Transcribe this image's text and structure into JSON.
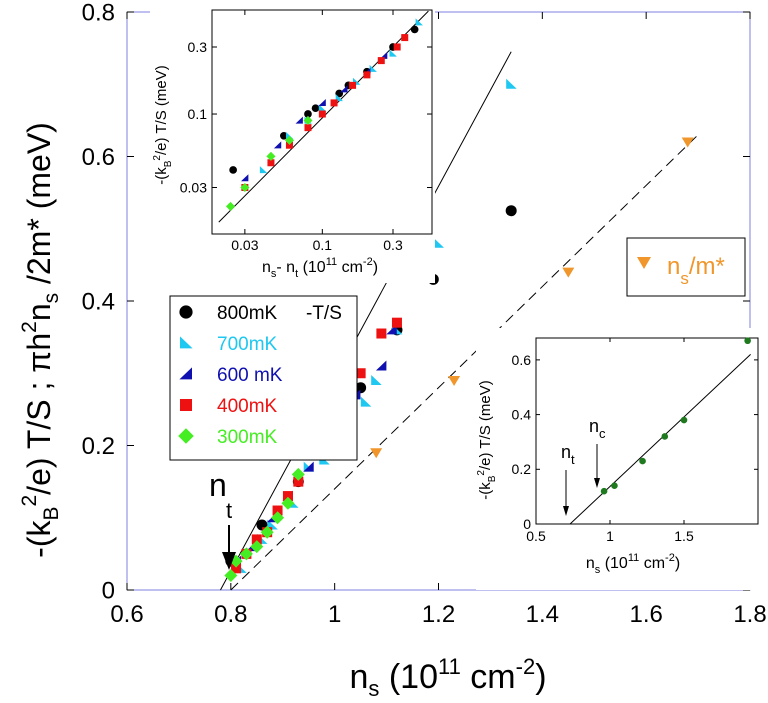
{
  "chart_data": [
    {
      "type": "scatter",
      "xlabel": {
        "base": "n",
        "sub": "s",
        "rest": " (10",
        "sup": "11",
        "unit": " cm",
        "unit_sup": "-2",
        "close": ")"
      },
      "ylabel": {
        "t1": "-(k",
        "t1_sub": "B",
        "t1_sup": "2",
        "t1_rest": "/e) T/S ;   πh",
        "t2_sup": "2",
        "t2": "n",
        "t2_sub": "s",
        "t2_rest": " /2m* (meV)"
      },
      "xlim": [
        0.6,
        1.8
      ],
      "ylim": [
        0,
        0.8
      ],
      "x_ticks": [
        "0.6",
        "0.8",
        "1",
        "1.2",
        "1.4",
        "1.6",
        "1.8"
      ],
      "x_tick_values": [
        0.6,
        0.8,
        1.0,
        1.2,
        1.4,
        1.6,
        1.8
      ],
      "y_ticks": [
        "0",
        "0.2",
        "0.4",
        "0.6",
        "0.8"
      ],
      "y_tick_values": [
        0,
        0.2,
        0.4,
        0.6,
        0.8
      ],
      "legend_placement": "middle-left",
      "legend_title_suffix": "-T/S",
      "series": [
        {
          "name": "800mK",
          "marker": "circle",
          "color": "#000000",
          "points": [
            [
              0.8,
              0.04
            ],
            [
              0.86,
              0.09
            ],
            [
              0.93,
              0.15
            ],
            [
              0.96,
              0.19
            ],
            [
              1.0,
              0.24
            ],
            [
              1.02,
              0.25
            ],
            [
              1.05,
              0.28
            ],
            [
              1.12,
              0.36
            ],
            [
              1.19,
              0.43
            ],
            [
              1.34,
              0.525
            ]
          ]
        },
        {
          "name": "700mK",
          "marker": "triangle-right",
          "color": "#1ec8f0",
          "points": [
            [
              0.82,
              0.03
            ],
            [
              0.86,
              0.07
            ],
            [
              0.88,
              0.09
            ],
            [
              0.92,
              0.12
            ],
            [
              0.95,
              0.17
            ],
            [
              0.98,
              0.18
            ],
            [
              1.0,
              0.21
            ],
            [
              1.03,
              0.23
            ],
            [
              1.06,
              0.26
            ],
            [
              1.08,
              0.29
            ],
            [
              1.12,
              0.36
            ],
            [
              1.2,
              0.48
            ],
            [
              1.34,
              0.7
            ]
          ]
        },
        {
          "name": "600 mK",
          "marker": "triangle-left",
          "color": "#1010b0",
          "points": [
            [
              0.81,
              0.04
            ],
            [
              0.84,
              0.06
            ],
            [
              0.88,
              0.1
            ],
            [
              0.91,
              0.13
            ],
            [
              0.95,
              0.17
            ],
            [
              0.99,
              0.21
            ],
            [
              1.01,
              0.24
            ],
            [
              1.04,
              0.27
            ],
            [
              1.09,
              0.31
            ],
            [
              1.11,
              0.36
            ]
          ]
        },
        {
          "name": "400mK",
          "marker": "square",
          "color": "#ee1111",
          "points": [
            [
              0.81,
              0.03
            ],
            [
              0.83,
              0.05
            ],
            [
              0.85,
              0.07
            ],
            [
              0.87,
              0.08
            ],
            [
              0.89,
              0.11
            ],
            [
              0.91,
              0.13
            ],
            [
              0.93,
              0.15
            ],
            [
              0.96,
              0.19
            ],
            [
              0.97,
              0.22
            ],
            [
              0.99,
              0.22
            ],
            [
              1.01,
              0.25
            ],
            [
              1.03,
              0.27
            ],
            [
              1.05,
              0.3
            ],
            [
              1.09,
              0.355
            ],
            [
              1.12,
              0.37
            ]
          ]
        },
        {
          "name": "300mK",
          "marker": "diamond",
          "color": "#44ee22",
          "points": [
            [
              0.8,
              0.02
            ],
            [
              0.81,
              0.04
            ],
            [
              0.83,
              0.05
            ],
            [
              0.85,
              0.06
            ],
            [
              0.87,
              0.08
            ],
            [
              0.89,
              0.1
            ],
            [
              0.91,
              0.12
            ],
            [
              0.93,
              0.16
            ],
            [
              0.96,
              0.22
            ]
          ]
        },
        {
          "name": "n_s/m*",
          "marker": "triangle-down",
          "color": "#f0962a",
          "points": [
            [
              1.08,
              0.19
            ],
            [
              1.23,
              0.29
            ],
            [
              1.45,
              0.44
            ],
            [
              1.68,
              0.62
            ]
          ]
        }
      ],
      "fit_lines": [
        {
          "style": "solid",
          "from": [
            0.78,
            0.0
          ],
          "to": [
            1.34,
            0.745
          ]
        },
        {
          "style": "dashed",
          "from": [
            0.8,
            0.0
          ],
          "to": [
            1.7,
            0.63
          ]
        }
      ],
      "annotations": {
        "nt_base": "n",
        "nt_sub": "t",
        "nt_point": [
          0.785,
          0.025
        ],
        "nsm_base": "n",
        "nsm_sub": "s",
        "nsm_rest": "/m*"
      }
    },
    {
      "type": "scatter",
      "scale": "log-log",
      "xlabel": {
        "t1": "n",
        "t1_sub": "s",
        "t2": "- n",
        "t2_sub": "t",
        "rest": " (10",
        "sup": "11",
        "unit": " cm",
        "unit_sup": "-2",
        "close": ")"
      },
      "ylabel": {
        "t1": "-(k",
        "t1_sub": "B",
        "t1_sup": "2",
        "rest": "/e) T/S (meV)"
      },
      "xlim": [
        0.018,
        0.55
      ],
      "ylim": [
        0.014,
        0.55
      ],
      "x_ticks": [
        "0.03",
        "0.1",
        "0.3"
      ],
      "x_tick_values": [
        0.03,
        0.1,
        0.3
      ],
      "y_ticks": [
        "0.03",
        "0.1",
        "0.3"
      ],
      "y_tick_values": [
        0.03,
        0.1,
        0.3
      ],
      "series": [
        {
          "name": "800mK",
          "marker": "circle",
          "color": "#000000",
          "points": [
            [
              0.025,
              0.04
            ],
            [
              0.055,
              0.07
            ],
            [
              0.08,
              0.1
            ],
            [
              0.09,
              0.11
            ],
            [
              0.13,
              0.14
            ],
            [
              0.15,
              0.16
            ],
            [
              0.2,
              0.2
            ],
            [
              0.3,
              0.3
            ],
            [
              0.42,
              0.4
            ]
          ]
        },
        {
          "name": "700mK",
          "marker": "triangle-right",
          "color": "#1ec8f0",
          "points": [
            [
              0.04,
              0.04
            ],
            [
              0.06,
              0.07
            ],
            [
              0.08,
              0.09
            ],
            [
              0.1,
              0.11
            ],
            [
              0.13,
              0.13
            ],
            [
              0.17,
              0.17
            ],
            [
              0.22,
              0.21
            ],
            [
              0.3,
              0.27
            ],
            [
              0.45,
              0.45
            ]
          ]
        },
        {
          "name": "600 mK",
          "marker": "triangle-left",
          "color": "#1010b0",
          "points": [
            [
              0.03,
              0.035
            ],
            [
              0.05,
              0.06
            ],
            [
              0.07,
              0.09
            ],
            [
              0.1,
              0.12
            ],
            [
              0.14,
              0.15
            ],
            [
              0.2,
              0.2
            ],
            [
              0.26,
              0.26
            ]
          ]
        },
        {
          "name": "400mK",
          "marker": "square",
          "color": "#ee1111",
          "points": [
            [
              0.03,
              0.03
            ],
            [
              0.045,
              0.045
            ],
            [
              0.06,
              0.06
            ],
            [
              0.08,
              0.08
            ],
            [
              0.1,
              0.1
            ],
            [
              0.12,
              0.12
            ],
            [
              0.16,
              0.16
            ],
            [
              0.2,
              0.19
            ],
            [
              0.25,
              0.24
            ],
            [
              0.32,
              0.3
            ],
            [
              0.36,
              0.35
            ]
          ]
        },
        {
          "name": "300mK",
          "marker": "diamond",
          "color": "#44ee22",
          "points": [
            [
              0.024,
              0.022
            ],
            [
              0.03,
              0.03
            ],
            [
              0.045,
              0.05
            ],
            [
              0.06,
              0.065
            ],
            [
              0.08,
              0.09
            ]
          ]
        }
      ],
      "fit_lines": [
        {
          "style": "solid",
          "from": [
            0.02,
            0.017
          ],
          "to": [
            0.52,
            0.54
          ]
        }
      ]
    },
    {
      "type": "scatter",
      "xlabel": {
        "base": "n",
        "sub": "s",
        "rest": " (10",
        "sup": "11",
        "unit": " cm",
        "unit_sup": "-2",
        "close": ")"
      },
      "ylabel": {
        "t1": "-(k",
        "t1_sub": "B",
        "t1_sup": "2",
        "rest": "/e) T/S (meV)"
      },
      "xlim": [
        0.5,
        2.0
      ],
      "ylim": [
        0,
        0.68
      ],
      "x_ticks": [
        "0.5",
        "1",
        "1.5"
      ],
      "x_tick_values": [
        0.5,
        1.0,
        1.5
      ],
      "y_ticks": [
        "0",
        "0.2",
        "0.4",
        "0.6"
      ],
      "y_tick_values": [
        0,
        0.2,
        0.4,
        0.6
      ],
      "series": [
        {
          "name": "",
          "marker": "circle",
          "color": "#1f7a1f",
          "points": [
            [
              0.96,
              0.12
            ],
            [
              1.03,
              0.14
            ],
            [
              1.22,
              0.23
            ],
            [
              1.37,
              0.32
            ],
            [
              1.5,
              0.38
            ],
            [
              1.93,
              0.67
            ]
          ]
        }
      ],
      "fit_lines": [
        {
          "style": "solid",
          "from": [
            0.73,
            0.0
          ],
          "to": [
            1.95,
            0.62
          ]
        }
      ],
      "annotations": {
        "nt_base": "n",
        "nt_sub": "t",
        "nt_point": [
          0.74,
          0.0
        ],
        "nc_base": "n",
        "nc_sub": "c",
        "nc_point": [
          0.98,
          0.11
        ]
      }
    }
  ]
}
